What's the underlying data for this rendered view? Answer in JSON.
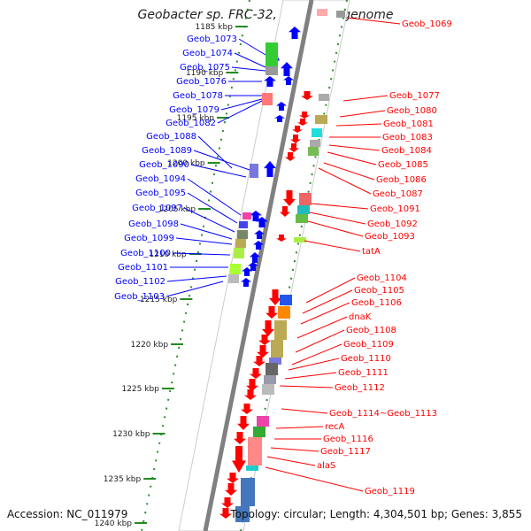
{
  "title": "Geobacter sp. FRC-32, complete genome",
  "accession": "Accession: NC_011979",
  "summary": "Topology: circular; Length: 4,304,501 bp; Genes: 3,855",
  "ruler_labels": [
    "1185 kbp",
    "1190 kbp",
    "1195 kbp",
    "1200 kbp",
    "1205 kbp",
    "1210 kbp",
    "1215 kbp",
    "1220 kbp",
    "1225 kbp",
    "1230 kbp",
    "1235 kbp",
    "1240 kbp"
  ],
  "left_genes": [
    "Geob_1073",
    "Geob_1074",
    "Geob_1075",
    "Geob_1076",
    "Geob_1078",
    "Geob_1079",
    "Geob_1082",
    "Geob_1088",
    "Geob_1089",
    "Geob_1090",
    "Geob_1094",
    "Geob_1095",
    "Geob_1097",
    "Geob_1098",
    "Geob_1099",
    "Geob_1100",
    "Geob_1101",
    "Geob_1102",
    "Geob_1103"
  ],
  "right_genes": [
    "Geob_1069",
    "Geob_1077",
    "Geob_1080",
    "Geob_1081",
    "Geob_1083",
    "Geob_1084",
    "Geob_1085",
    "Geob_1086",
    "Geob_1087",
    "Geob_1091",
    "Geob_1092",
    "Geob_1093",
    "tatA",
    "Geob_1104",
    "Geob_1105",
    "Geob_1106",
    "dnaK",
    "Geob_1108",
    "Geob_1109",
    "Geob_1110",
    "Geob_1111",
    "Geob_1112",
    "Geob_1114~Geob_1113",
    "recA",
    "Geob_1116",
    "Geob_1117",
    "alaS",
    "Geob_1119"
  ],
  "colors": {
    "forward": "#0000ff",
    "reverse": "#ff0000",
    "ruler": "#228b22",
    "axis": "#808080"
  }
}
